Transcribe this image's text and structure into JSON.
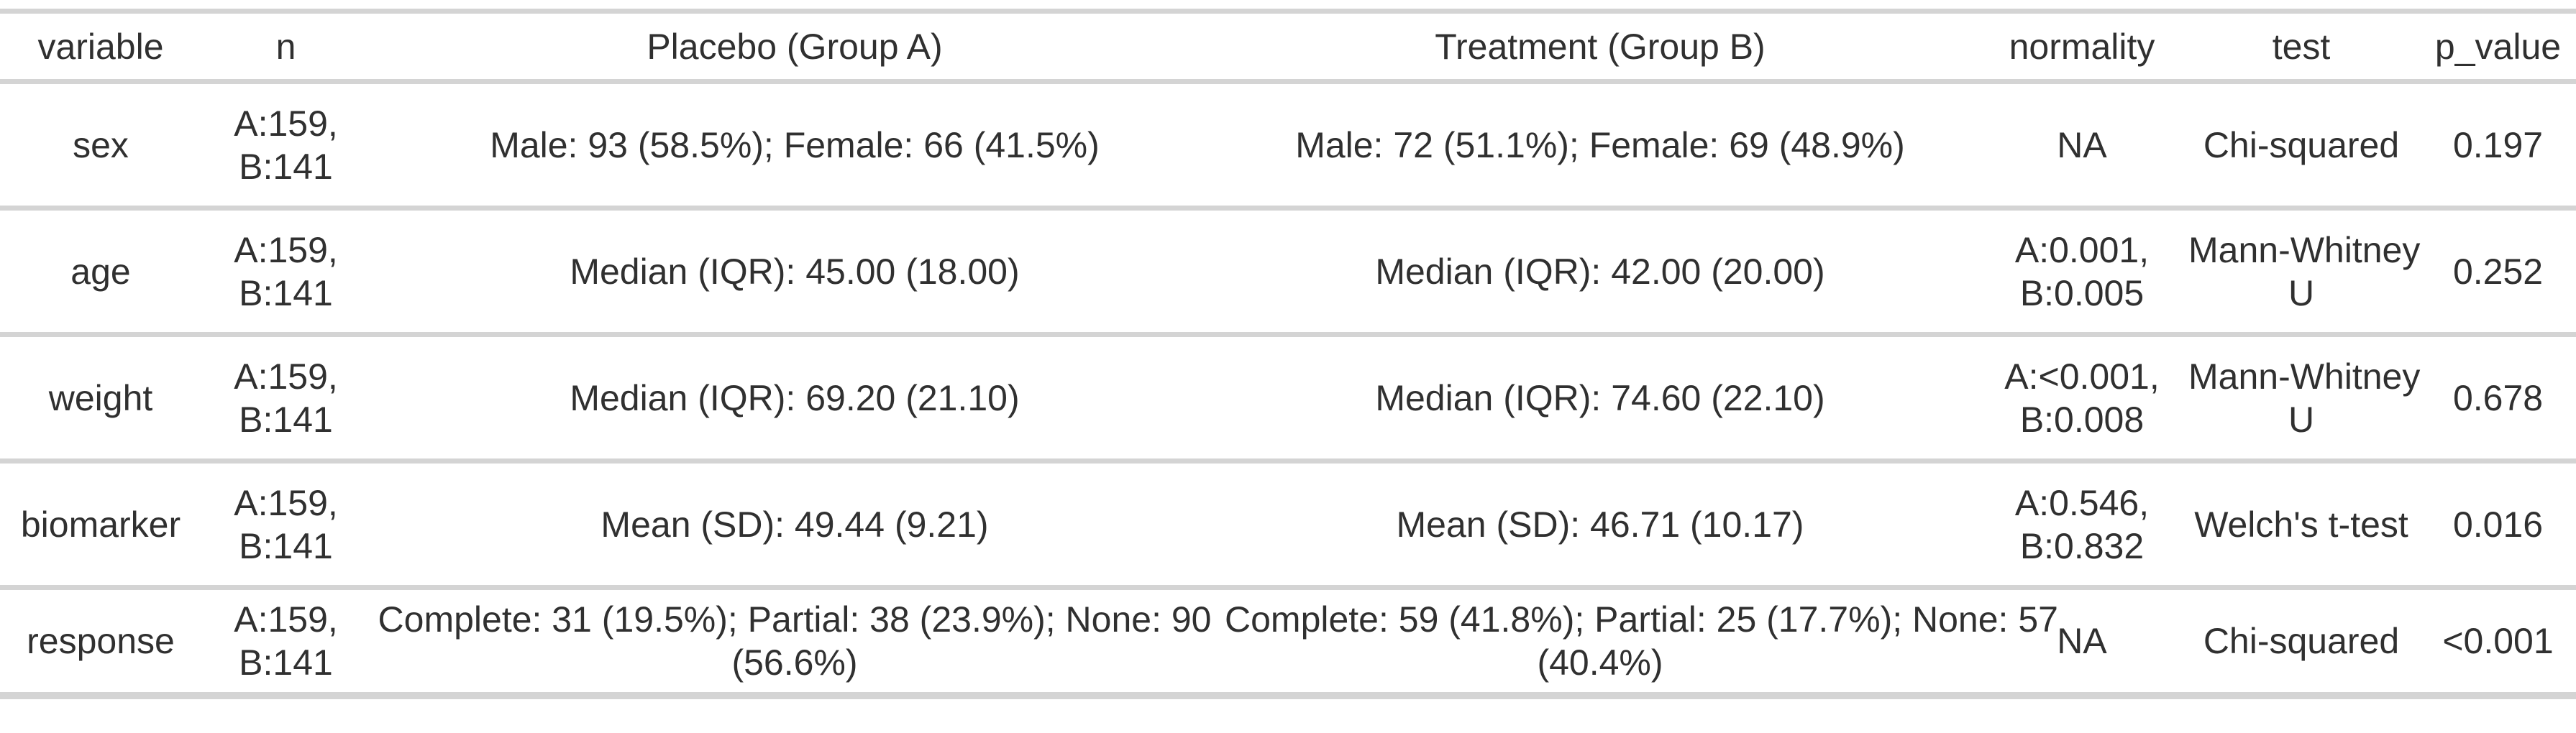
{
  "colors": {
    "text": "#303030",
    "grid_line": "#d4d4d4",
    "background": "#ffffff"
  },
  "chart_data": {
    "type": "table",
    "columns": [
      "variable",
      "n",
      "Placebo (Group A)",
      "Treatment (Group B)",
      "normality",
      "test",
      "p_value"
    ],
    "rows": [
      {
        "variable": "sex",
        "n": "A:159,\nB:141",
        "placebo": "Male: 93 (58.5%); Female: 66 (41.5%)",
        "treatment": "Male: 72 (51.1%); Female: 69 (48.9%)",
        "normality": "NA",
        "test": "Chi-squared",
        "p_value": "0.197"
      },
      {
        "variable": "age",
        "n": "A:159,\nB:141",
        "placebo": "Median (IQR): 45.00 (18.00)",
        "treatment": "Median (IQR): 42.00 (20.00)",
        "normality": "A:0.001,\nB:0.005",
        "test": "Mann-Whitney\nU",
        "p_value": "0.252"
      },
      {
        "variable": "weight",
        "n": "A:159,\nB:141",
        "placebo": "Median (IQR): 69.20 (21.10)",
        "treatment": "Median (IQR): 74.60 (22.10)",
        "normality": "A:<0.001,\nB:0.008",
        "test": "Mann-Whitney\nU",
        "p_value": "0.678"
      },
      {
        "variable": "biomarker",
        "n": "A:159,\nB:141",
        "placebo": "Mean (SD): 49.44 (9.21)",
        "treatment": "Mean (SD): 46.71 (10.17)",
        "normality": "A:0.546,\nB:0.832",
        "test": "Welch's t-test",
        "p_value": "0.016"
      },
      {
        "variable": "response",
        "n": "A:159,\nB:141",
        "placebo": "Complete: 31 (19.5%); Partial: 38 (23.9%); None: 90\n(56.6%)",
        "treatment": "Complete: 59 (41.8%); Partial: 25 (17.7%); None: 57\n(40.4%)",
        "normality": "NA",
        "test": "Chi-squared",
        "p_value": "<0.001"
      }
    ]
  }
}
